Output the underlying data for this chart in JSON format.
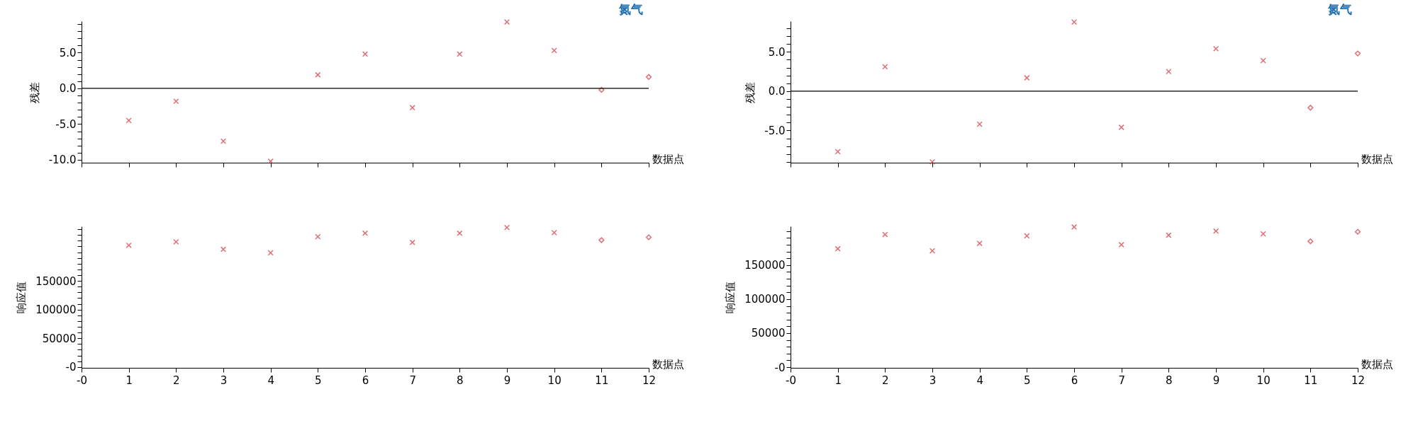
{
  "chart_data": [
    {
      "type": "scatter",
      "xlabel": "数据点",
      "ylabel": "残差",
      "annotations": [
        "氮气"
      ],
      "tick_labels": "y",
      "xlim": [
        0,
        12
      ],
      "xticks": [
        0,
        1,
        2,
        3,
        4,
        5,
        6,
        7,
        8,
        9,
        10,
        11,
        12
      ],
      "ylim": [
        -10.4,
        9.4
      ],
      "yticks": [
        {
          "value": -10,
          "label": "-10.0"
        },
        {
          "value": -9,
          "label": null
        },
        {
          "value": -8,
          "label": null
        },
        {
          "value": -7,
          "label": null
        },
        {
          "value": -6,
          "label": null
        },
        {
          "value": -5,
          "label": "-5.0"
        },
        {
          "value": -4,
          "label": null
        },
        {
          "value": -3,
          "label": null
        },
        {
          "value": -2,
          "label": null
        },
        {
          "value": -1,
          "label": null
        },
        {
          "value": 0,
          "label": "0.0"
        },
        {
          "value": 1,
          "label": null
        },
        {
          "value": 2,
          "label": null
        },
        {
          "value": 3,
          "label": null
        },
        {
          "value": 4,
          "label": null
        },
        {
          "value": 5,
          "label": "5.0"
        },
        {
          "value": 6,
          "label": null
        },
        {
          "value": 7,
          "label": null
        },
        {
          "value": 8,
          "label": null
        },
        {
          "value": 9,
          "label": null
        }
      ],
      "ref_lines": [
        {
          "axis": "y",
          "value": 0,
          "color": "#000000"
        }
      ],
      "series": [
        {
          "color": "#d0343a",
          "marker": "cross",
          "x": [
            1,
            2,
            3,
            4,
            5,
            6,
            7,
            8,
            9,
            10
          ],
          "values": [
            -4.5,
            -1.8,
            -7.4,
            -10.2,
            1.9,
            4.8,
            -2.7,
            4.8,
            9.3,
            5.3
          ]
        },
        {
          "color": "#d0343a",
          "marker": "diamond",
          "x": [
            11,
            12
          ],
          "values": [
            -0.2,
            1.6
          ]
        }
      ]
    },
    {
      "type": "scatter",
      "xlabel": "数据点",
      "ylabel": "残差",
      "annotations": [
        "氮气"
      ],
      "tick_labels": "y",
      "xlim": [
        0,
        12
      ],
      "xticks": [
        0,
        1,
        2,
        3,
        4,
        5,
        6,
        7,
        8,
        9,
        10,
        11,
        12
      ],
      "ylim": [
        -9.1,
        8.9
      ],
      "yticks": [
        {
          "value": -9,
          "label": null
        },
        {
          "value": -8,
          "label": null
        },
        {
          "value": -7,
          "label": null
        },
        {
          "value": -6,
          "label": null
        },
        {
          "value": -5,
          "label": "-5.0"
        },
        {
          "value": -4,
          "label": null
        },
        {
          "value": -3,
          "label": null
        },
        {
          "value": -2,
          "label": null
        },
        {
          "value": -1,
          "label": null
        },
        {
          "value": 0,
          "label": "0.0"
        },
        {
          "value": 1,
          "label": null
        },
        {
          "value": 2,
          "label": null
        },
        {
          "value": 3,
          "label": null
        },
        {
          "value": 4,
          "label": null
        },
        {
          "value": 5,
          "label": "5.0"
        },
        {
          "value": 6,
          "label": null
        },
        {
          "value": 7,
          "label": null
        },
        {
          "value": 8,
          "label": null
        }
      ],
      "ref_lines": [
        {
          "axis": "y",
          "value": 0,
          "color": "#000000"
        }
      ],
      "series": [
        {
          "color": "#d0343a",
          "marker": "cross",
          "x": [
            1,
            2,
            3,
            4,
            5,
            6,
            7,
            8,
            9,
            10
          ],
          "values": [
            -7.7,
            3.1,
            -9.0,
            -4.2,
            1.7,
            8.8,
            -4.6,
            2.5,
            5.4,
            3.9
          ]
        },
        {
          "color": "#d0343a",
          "marker": "diamond",
          "x": [
            11,
            12
          ],
          "values": [
            -2.1,
            4.8
          ]
        }
      ]
    },
    {
      "type": "scatter",
      "xlabel": "数据点",
      "ylabel": "响应值",
      "xlim": [
        0,
        12
      ],
      "xticks": [
        {
          "value": 0,
          "label": "-0"
        },
        1,
        2,
        3,
        4,
        5,
        6,
        7,
        8,
        9,
        10,
        11,
        12
      ],
      "ylim": [
        -1500,
        245000
      ],
      "yticks": [
        {
          "value": 0,
          "label": "-0"
        },
        {
          "value": 10000,
          "label": null
        },
        {
          "value": 20000,
          "label": null
        },
        {
          "value": 30000,
          "label": null
        },
        {
          "value": 40000,
          "label": null
        },
        50000,
        {
          "value": 60000,
          "label": null
        },
        {
          "value": 70000,
          "label": null
        },
        {
          "value": 80000,
          "label": null
        },
        {
          "value": 90000,
          "label": null
        },
        100000,
        {
          "value": 110000,
          "label": null
        },
        {
          "value": 120000,
          "label": null
        },
        {
          "value": 130000,
          "label": null
        },
        {
          "value": 140000,
          "label": null
        },
        150000,
        {
          "value": 160000,
          "label": null
        },
        {
          "value": 170000,
          "label": null
        },
        {
          "value": 180000,
          "label": null
        },
        {
          "value": 190000,
          "label": null
        },
        {
          "value": 200000,
          "label": null
        },
        {
          "value": 210000,
          "label": null
        },
        {
          "value": 220000,
          "label": null
        },
        {
          "value": 230000,
          "label": null
        },
        {
          "value": 240000,
          "label": null
        }
      ],
      "series": [
        {
          "color": "#d0343a",
          "marker": "cross",
          "x": [
            1,
            2,
            3,
            4,
            5,
            6,
            7,
            8,
            9,
            10
          ],
          "values": [
            212000,
            218000,
            205000,
            199000,
            227000,
            233000,
            217000,
            233000,
            243000,
            234000
          ]
        },
        {
          "color": "#d0343a",
          "marker": "diamond",
          "x": [
            11,
            12
          ],
          "values": [
            221000,
            226000
          ]
        }
      ]
    },
    {
      "type": "scatter",
      "xlabel": "数据点",
      "ylabel": "响应值",
      "xlim": [
        0,
        12
      ],
      "xticks": [
        {
          "value": 0,
          "label": "-0"
        },
        1,
        2,
        3,
        4,
        5,
        6,
        7,
        8,
        9,
        10,
        11,
        12
      ],
      "ylim": [
        -1000,
        207000
      ],
      "yticks": [
        {
          "value": 0,
          "label": "-0"
        },
        {
          "value": 10000,
          "label": null
        },
        {
          "value": 20000,
          "label": null
        },
        {
          "value": 30000,
          "label": null
        },
        {
          "value": 40000,
          "label": null
        },
        50000,
        {
          "value": 60000,
          "label": null
        },
        {
          "value": 70000,
          "label": null
        },
        {
          "value": 80000,
          "label": null
        },
        {
          "value": 90000,
          "label": null
        },
        100000,
        {
          "value": 110000,
          "label": null
        },
        {
          "value": 120000,
          "label": null
        },
        {
          "value": 130000,
          "label": null
        },
        {
          "value": 140000,
          "label": null
        },
        150000,
        {
          "value": 160000,
          "label": null
        },
        {
          "value": 170000,
          "label": null
        },
        {
          "value": 180000,
          "label": null
        },
        {
          "value": 190000,
          "label": null
        },
        {
          "value": 200000,
          "label": null
        }
      ],
      "series": [
        {
          "color": "#d0343a",
          "marker": "cross",
          "x": [
            1,
            2,
            3,
            4,
            5,
            6,
            7,
            8,
            9,
            10
          ],
          "values": [
            174000,
            195000,
            171000,
            182000,
            193000,
            206000,
            180000,
            194000,
            200000,
            196000
          ]
        },
        {
          "color": "#d0343a",
          "marker": "diamond",
          "x": [
            11,
            12
          ],
          "values": [
            185000,
            199000
          ]
        }
      ]
    }
  ]
}
